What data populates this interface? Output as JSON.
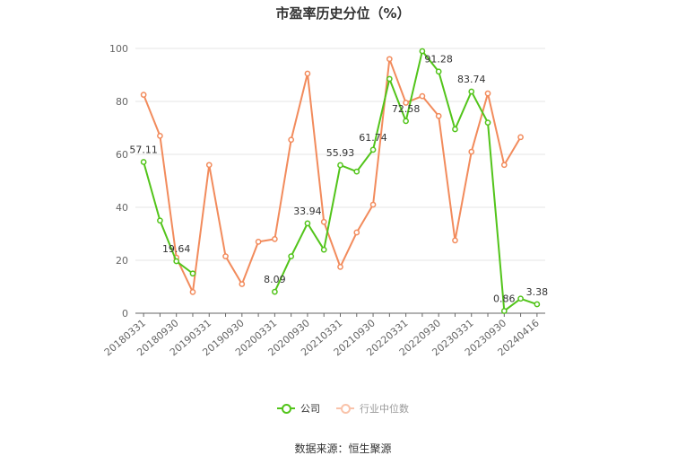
{
  "chart_data": {
    "type": "line",
    "title": "市盈率历史分位（%）",
    "categories": [
      "20180331",
      "20180630",
      "20180930",
      "20181231",
      "20190331",
      "20190630",
      "20190930",
      "20191231",
      "20200331",
      "20200630",
      "20200930",
      "20201231",
      "20210331",
      "20210630",
      "20210930",
      "20211231",
      "20220331",
      "20220630",
      "20220930",
      "20221231",
      "20230331",
      "20230630",
      "20230930",
      "20231231",
      "20240416"
    ],
    "x_tick_labels": [
      "20180331",
      "20180930",
      "20190331",
      "20190930",
      "20200331",
      "20200930",
      "20210331",
      "20210930",
      "20220331",
      "20220930",
      "20230331",
      "20230930",
      "20240416"
    ],
    "ylim": [
      0,
      100
    ],
    "y_ticks": [
      0,
      20,
      40,
      60,
      80,
      100
    ],
    "grid": true,
    "legend_position": "bottom",
    "series": [
      {
        "name": "公司",
        "color": "#52c41a",
        "values": [
          57.11,
          35,
          19.64,
          15,
          null,
          null,
          null,
          null,
          8.09,
          21.5,
          33.94,
          24,
          55.93,
          53.5,
          61.74,
          88.5,
          72.58,
          99,
          91.28,
          69.5,
          83.74,
          72,
          0.86,
          5.5,
          3.38
        ],
        "labels": {
          "0": "57.11",
          "2": "19.64",
          "8": "8.09",
          "10": "33.94",
          "12": "55.93",
          "14": "61.74",
          "16": "72.58",
          "18": "91.28",
          "20": "83.74",
          "22": "0.86",
          "24": "3.38"
        }
      },
      {
        "name": "行业中位数",
        "color": "#f28b5c",
        "values": [
          82.5,
          67,
          21,
          8,
          56,
          21.5,
          11,
          27,
          28,
          65.5,
          90.5,
          34.5,
          17.5,
          30.5,
          41,
          96,
          79.5,
          82,
          74.5,
          27.5,
          61,
          83,
          56,
          66.5,
          null
        ]
      }
    ]
  },
  "legend": {
    "company": "公司",
    "industry": "行业中位数"
  },
  "source_text": "数据来源：恒生聚源"
}
